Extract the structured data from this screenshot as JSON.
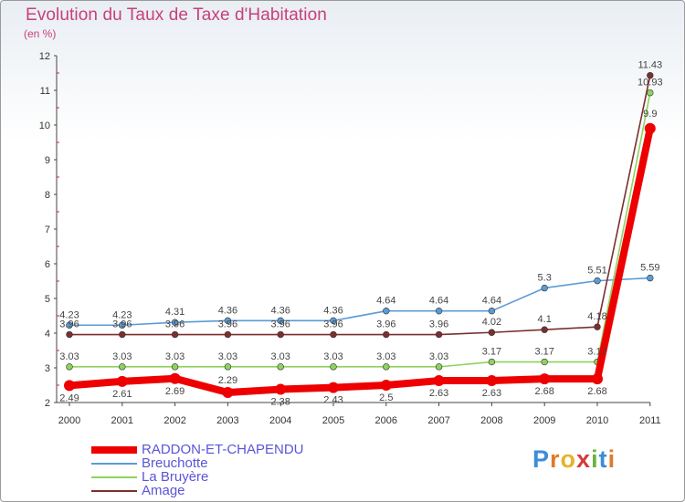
{
  "title": "Evolution du Taux de Taxe d'Habitation",
  "subtitle": "(en %)",
  "logo": {
    "letters": [
      "P",
      "r",
      "o",
      "x",
      "i",
      "t",
      "i"
    ],
    "colors": [
      "#3a8ed8",
      "#e07a2a",
      "#e5b42b",
      "#d43b3b",
      "#6cb33f",
      "#3a8ed8",
      "#e07a2a"
    ]
  },
  "chart_data": {
    "type": "line",
    "x": [
      "2000",
      "2001",
      "2002",
      "2003",
      "2004",
      "2005",
      "2006",
      "2007",
      "2008",
      "2009",
      "2010",
      "2011"
    ],
    "ylim": [
      2,
      12
    ],
    "yticks": [
      "2",
      "3",
      "4",
      "5",
      "6",
      "7",
      "8",
      "9",
      "10",
      "11",
      "12"
    ],
    "grid": false,
    "legend_position": "bottom-left",
    "series": [
      {
        "name": "RADDON-ET-CHAPENDU",
        "color": "#ee0000",
        "values": [
          2.49,
          2.61,
          2.69,
          2.29,
          2.38,
          2.43,
          2.5,
          2.63,
          2.63,
          2.68,
          2.68,
          9.9
        ],
        "labels": [
          "2.49",
          "2.61",
          "2.69",
          "2.29",
          "2.38",
          "2.43",
          "2.5",
          "2.63",
          "2.63",
          "2.68",
          "2.68",
          "9.9"
        ]
      },
      {
        "name": "Breuchotte",
        "color": "#5b9bd5",
        "values": [
          4.23,
          4.23,
          4.31,
          4.36,
          4.36,
          4.36,
          4.64,
          4.64,
          4.64,
          5.3,
          5.51,
          5.59
        ],
        "labels": [
          "4.23",
          "4.23",
          "4.31",
          "4.36",
          "4.36",
          "4.36",
          "4.64",
          "4.64",
          "4.64",
          "5.3",
          "5.51",
          "5.59"
        ]
      },
      {
        "name": "La Bruyère",
        "color": "#8ed35c",
        "values": [
          3.03,
          3.03,
          3.03,
          3.03,
          3.03,
          3.03,
          3.03,
          3.03,
          3.17,
          3.17,
          3.17,
          10.93
        ],
        "labels": [
          "3.03",
          "3.03",
          "3.03",
          "3.03",
          "3.03",
          "3.03",
          "3.03",
          "3.03",
          "3.17",
          "3.17",
          "3.17",
          "10.93"
        ]
      },
      {
        "name": "Amage",
        "color": "#7b2f2f",
        "values": [
          3.96,
          3.96,
          3.96,
          3.96,
          3.96,
          3.96,
          3.96,
          3.96,
          4.02,
          4.1,
          4.18,
          11.43
        ],
        "labels": [
          "3.96",
          "3.96",
          "3.96",
          "3.96",
          "3.96",
          "3.96",
          "3.96",
          "3.96",
          "4.02",
          "4.1",
          "4.18",
          "11.43"
        ]
      }
    ]
  }
}
